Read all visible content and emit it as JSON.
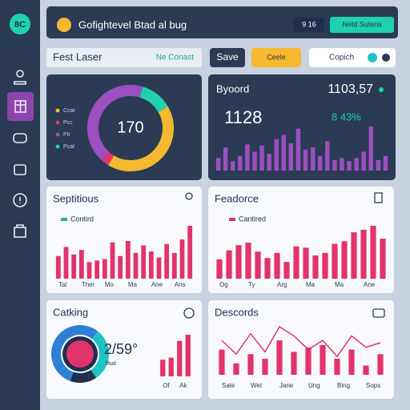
{
  "sidebar": {
    "logo": "8C"
  },
  "header": {
    "title": "Gofightevel Btad al bug",
    "dropdown": "9 16",
    "button": "Netd Sutens"
  },
  "toolbar": {
    "name": "Fest Laser",
    "status": "Ne Conast",
    "save": "Save",
    "action": "Ceele",
    "search": "Copich"
  },
  "chart_data": [
    {
      "type": "pie",
      "center_text": "170",
      "categories": [
        "Ccat",
        "Pcc",
        "Pit",
        "Pcat"
      ],
      "values": [
        42,
        3,
        43,
        12
      ],
      "colors": [
        "#f5b82e",
        "#e2336b",
        "#9b4fc0",
        "#1fd1b0"
      ]
    },
    {
      "type": "bar",
      "title": "Byoord",
      "total": "1103,57",
      "headline": "1128",
      "change": "8 43%",
      "values": [
        12,
        22,
        9,
        14,
        25,
        18,
        24,
        16,
        30,
        34,
        26,
        40,
        20,
        22,
        14,
        28,
        10,
        12,
        9,
        12,
        18,
        42,
        10,
        14
      ],
      "color": "#9b4fc0"
    },
    {
      "type": "bar",
      "title": "Septitious",
      "categories": [
        "Tat",
        null,
        null,
        "Ther",
        null,
        null,
        "Mo",
        null,
        null,
        "Ma",
        null,
        null,
        "Ane",
        null,
        null,
        "Ans",
        null,
        null
      ],
      "series": [
        {
          "name": "Contird",
          "color": "#e2336b",
          "values": [
            30,
            42,
            32,
            38,
            22,
            24,
            26,
            48,
            30,
            50,
            34,
            44,
            36,
            28,
            46,
            34,
            52,
            70
          ]
        }
      ],
      "legend_color": "#2bb673"
    },
    {
      "type": "bar",
      "title": "Feadorce",
      "categories": [
        "Og",
        null,
        null,
        "Ty",
        null,
        null,
        "Arg",
        null,
        null,
        "Ma",
        null,
        null,
        "Ma",
        null,
        null,
        "Ane",
        null,
        null
      ],
      "series": [
        {
          "name": "Cantired",
          "color": "#e2336b",
          "values": [
            30,
            44,
            52,
            56,
            42,
            32,
            40,
            26,
            50,
            48,
            36,
            40,
            54,
            58,
            72,
            76,
            82,
            62
          ]
        }
      ],
      "legend_color": "#e2336b"
    },
    {
      "type": "pie",
      "title": "Catking",
      "center_text": "2/59°",
      "note": "Ifsal",
      "values": [
        55,
        30,
        15
      ],
      "colors": [
        "#2e7fd6",
        "#1fc3c3",
        "#1f2f4d"
      ]
    },
    {
      "type": "bar",
      "categories": [
        "Of",
        null,
        "Ak",
        null
      ],
      "values": [
        8,
        9,
        17,
        20
      ],
      "color": "#e2336b"
    },
    {
      "type": "combo",
      "title": "Descords",
      "categories": [
        "Sale",
        null,
        "Wet",
        null,
        "Jane",
        null,
        "Ung",
        null,
        "Bing",
        null,
        "Sops",
        null
      ],
      "series": [
        {
          "kind": "bar",
          "color": "#e2336b",
          "values": [
            22,
            10,
            18,
            14,
            30,
            20,
            24,
            26,
            14,
            22,
            8,
            18
          ]
        },
        {
          "kind": "line",
          "color": "#e2336b",
          "values": [
            30,
            18,
            36,
            20,
            42,
            34,
            22,
            30,
            16,
            34,
            24,
            28
          ]
        }
      ]
    }
  ]
}
